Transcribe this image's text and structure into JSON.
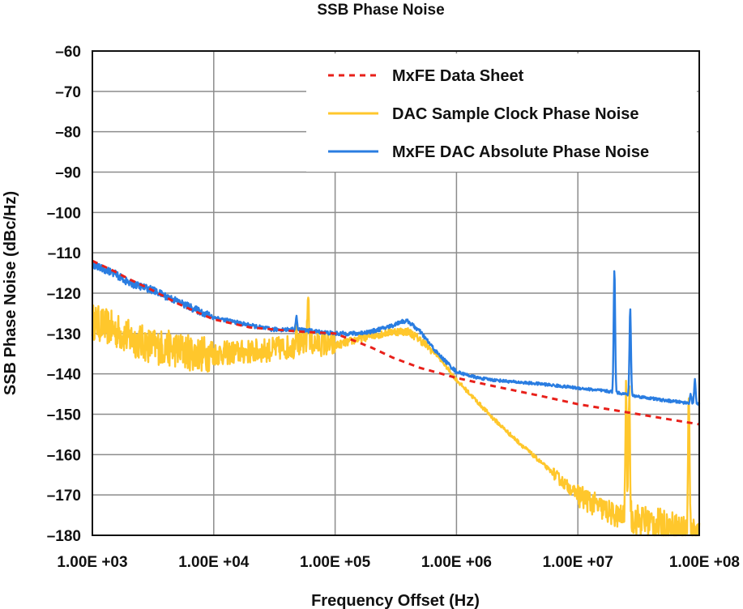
{
  "chart_data": {
    "type": "line",
    "title": "SSB Phase Noise",
    "xlabel": "Frequency Offset (Hz)",
    "ylabel": "SSB Phase Noise (dBc/Hz)",
    "xscale": "log",
    "xlim": [
      1000,
      100000000
    ],
    "ylim": [
      -180,
      -60
    ],
    "x_ticks": [
      1000,
      10000,
      100000,
      1000000,
      10000000,
      100000000
    ],
    "x_tick_labels": [
      "1.00E +03",
      "1.00E +04",
      "1.00E +05",
      "1.00E +06",
      "1.00E +07",
      "1.00E +08"
    ],
    "y_ticks": [
      -60,
      -70,
      -80,
      -90,
      -100,
      -110,
      -120,
      -130,
      -140,
      -150,
      -160,
      -170,
      -180
    ],
    "y_tick_labels": [
      "–60",
      "–70",
      "–80",
      "–90",
      "–100",
      "–110",
      "–120",
      "–130",
      "–140",
      "–150",
      "–160",
      "–170",
      "–180"
    ],
    "grid": true,
    "legend_position": "top-right",
    "series": [
      {
        "name": "MxFE Data Sheet",
        "color": "#e8201a",
        "style": "dashed",
        "x": [
          1000,
          1500,
          2000,
          3000,
          5000,
          7000,
          10000,
          20000,
          50000,
          100000,
          150000,
          200000,
          300000,
          500000,
          1000000,
          2000000,
          5000000,
          10000000,
          20000000,
          50000000,
          100000000
        ],
        "y": [
          -112,
          -114.5,
          -116.5,
          -119,
          -122.5,
          -124.5,
          -126.5,
          -128.5,
          -129.5,
          -130,
          -132,
          -133.5,
          -136,
          -138.5,
          -141,
          -143,
          -145.5,
          -147.5,
          -149,
          -151,
          -152.5
        ]
      },
      {
        "name": "DAC Sample Clock Phase Noise",
        "color": "#ffc72c",
        "style": "solid",
        "noise": true,
        "x": [
          1000,
          1500,
          2000,
          3000,
          5000,
          7000,
          10000,
          20000,
          30000,
          50000,
          60000,
          70000,
          100000,
          150000,
          200000,
          300000,
          400000,
          500000,
          700000,
          1000000,
          2000000,
          3000000,
          5000000,
          7000000,
          10000000,
          15000000,
          20000000,
          30000000,
          50000000,
          70000000,
          100000000
        ],
        "y": [
          -127,
          -129,
          -131,
          -133,
          -134,
          -135,
          -135,
          -134.5,
          -134,
          -133,
          -132.5,
          -132.5,
          -133,
          -131.5,
          -130.5,
          -129.5,
          -129.5,
          -131.5,
          -135.5,
          -141.5,
          -151,
          -156,
          -162,
          -166,
          -170,
          -173,
          -175,
          -176,
          -177.5,
          -178.5,
          -179.5
        ]
      },
      {
        "name": "MxFE DAC Absolute Phase Noise",
        "color": "#2a7de1",
        "style": "solid",
        "noise": true,
        "x": [
          1000,
          1500,
          2000,
          3000,
          5000,
          7000,
          10000,
          20000,
          30000,
          50000,
          70000,
          100000,
          150000,
          200000,
          300000,
          350000,
          400000,
          500000,
          700000,
          1000000,
          1500000,
          2000000,
          3000000,
          5000000,
          7000000,
          10000000,
          20000000,
          30000000,
          50000000,
          70000000,
          100000000
        ],
        "y": [
          -113,
          -115,
          -117.5,
          -119,
          -122,
          -124,
          -126,
          -128,
          -129,
          -129,
          -129.5,
          -130,
          -130,
          -129.5,
          -128,
          -127,
          -127,
          -129.5,
          -135,
          -139.5,
          -141,
          -141.5,
          -142,
          -142.5,
          -143,
          -143.5,
          -144.5,
          -145.5,
          -146.5,
          -147,
          -147.5
        ]
      }
    ],
    "spurs": [
      {
        "series": 2,
        "x": 48000,
        "y_peak": -126,
        "type": "spike"
      },
      {
        "series": 1,
        "x": 48000,
        "y_peak": -126,
        "type": "spike"
      },
      {
        "series": 1,
        "x": 60000,
        "y_peak": -120,
        "type": "spike"
      },
      {
        "series": 1,
        "x": 60000,
        "y_peak": -130,
        "type": "spike"
      },
      {
        "series": 2,
        "x": 20000000,
        "y_peak": -114,
        "type": "spike"
      },
      {
        "series": 2,
        "x": 27000000,
        "y_peak": -124,
        "type": "spike"
      },
      {
        "series": 1,
        "x": 25000000,
        "y_peak": -143,
        "type": "spike"
      },
      {
        "series": 1,
        "x": 26500000,
        "y_peak": -143,
        "type": "spike"
      },
      {
        "series": 1,
        "x": 82000000,
        "y_peak": -146,
        "type": "spike"
      },
      {
        "series": 2,
        "x": 85000000,
        "y_peak": -145,
        "type": "spike"
      },
      {
        "series": 2,
        "x": 92000000,
        "y_peak": -141.5,
        "type": "spike"
      }
    ]
  }
}
